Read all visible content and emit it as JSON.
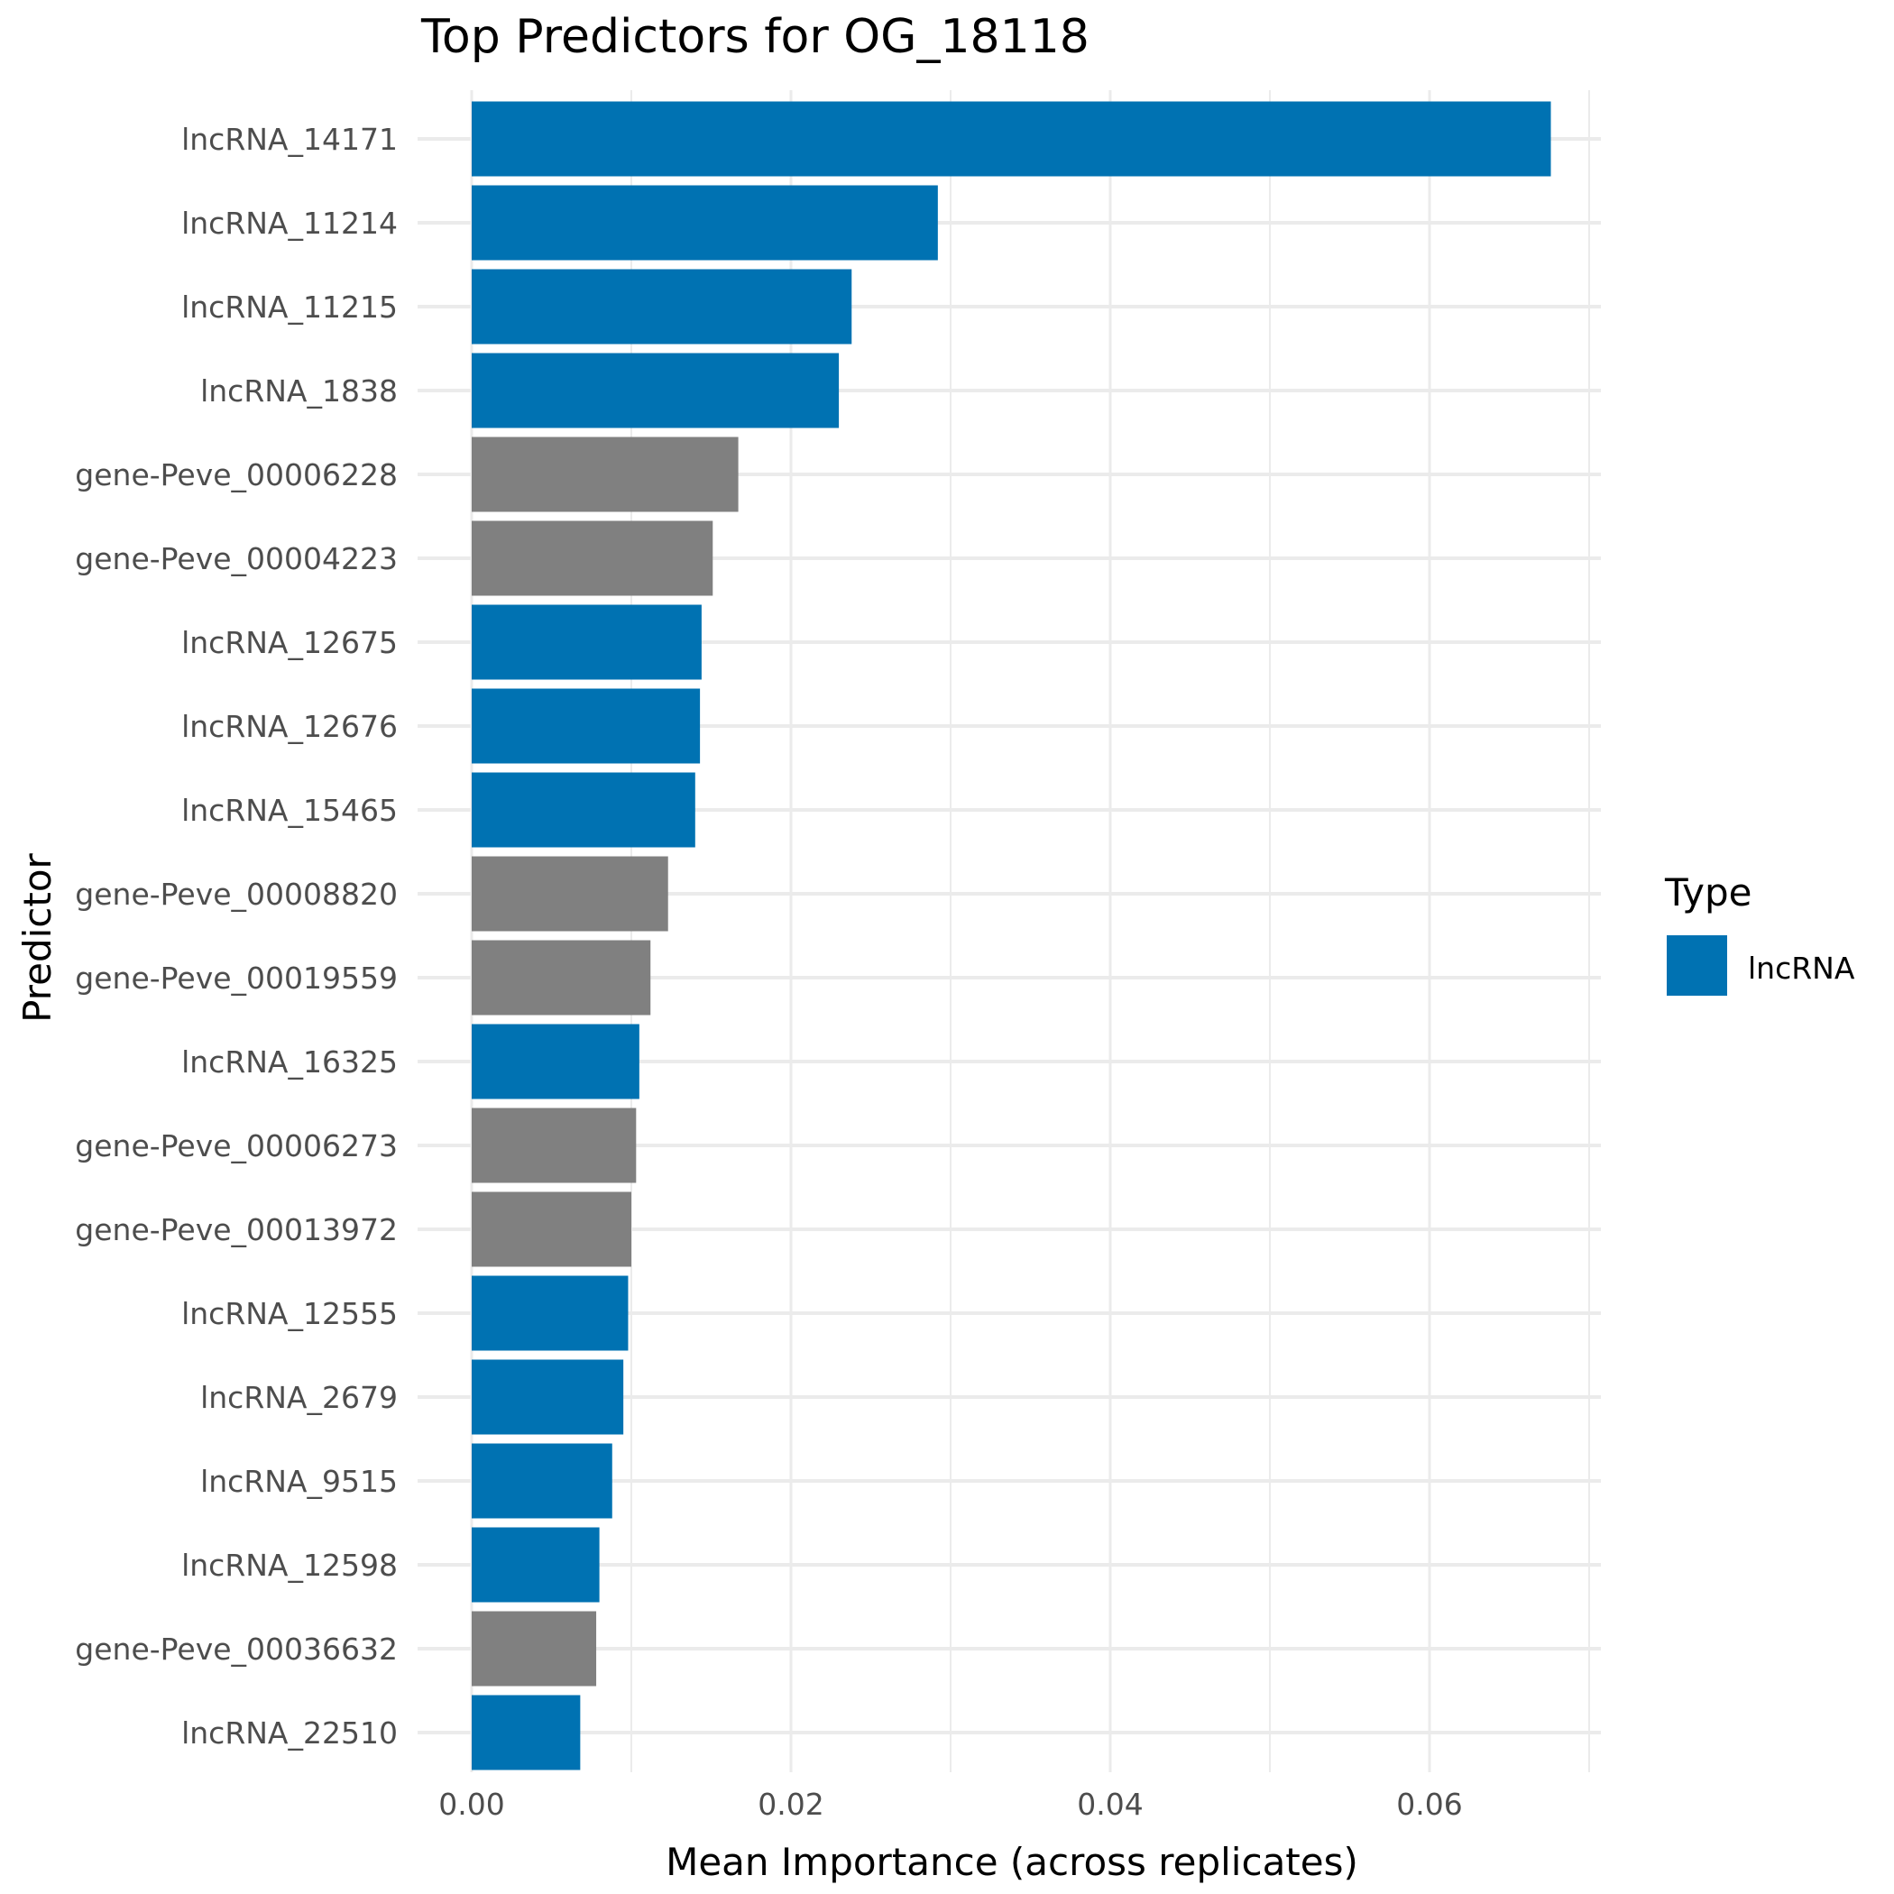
{
  "chart_data": {
    "type": "bar",
    "orientation": "horizontal",
    "title": "Top Predictors for OG_18118",
    "xlabel": "Mean Importance (across replicates)",
    "ylabel": "Predictor",
    "xlim": [
      0,
      0.071
    ],
    "x_ticks": [
      "0.00",
      "0.02",
      "0.04",
      "0.06"
    ],
    "x_tick_values": [
      0,
      0.02,
      0.04,
      0.06
    ],
    "grid": true,
    "legend": {
      "title": "Type",
      "placement": "right",
      "entries": [
        {
          "label": "lncRNA",
          "color": "#0072B2"
        }
      ]
    },
    "colors": {
      "lncRNA": "#0072B2",
      "gene": "#808080"
    },
    "categories": [
      "lncRNA_14171",
      "lncRNA_11214",
      "lncRNA_11215",
      "lncRNA_1838",
      "gene-Peve_00006228",
      "gene-Peve_00004223",
      "lncRNA_12675",
      "lncRNA_12676",
      "lncRNA_15465",
      "gene-Peve_00008820",
      "gene-Peve_00019559",
      "lncRNA_16325",
      "gene-Peve_00006273",
      "gene-Peve_00013972",
      "lncRNA_12555",
      "lncRNA_2679",
      "lncRNA_9515",
      "lncRNA_12598",
      "gene-Peve_00036632",
      "lncRNA_22510"
    ],
    "values": [
      0.0676,
      0.0292,
      0.0238,
      0.023,
      0.0167,
      0.0151,
      0.0144,
      0.0143,
      0.014,
      0.0123,
      0.0112,
      0.0105,
      0.0103,
      0.01,
      0.0098,
      0.0095,
      0.0088,
      0.008,
      0.0078,
      0.0068
    ],
    "types": [
      "lncRNA",
      "lncRNA",
      "lncRNA",
      "lncRNA",
      "gene",
      "gene",
      "lncRNA",
      "lncRNA",
      "lncRNA",
      "gene",
      "gene",
      "lncRNA",
      "gene",
      "gene",
      "lncRNA",
      "lncRNA",
      "lncRNA",
      "lncRNA",
      "gene",
      "lncRNA"
    ]
  }
}
